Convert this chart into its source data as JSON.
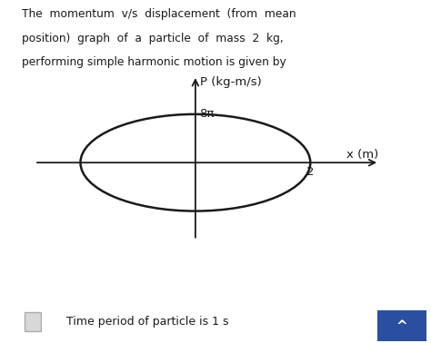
{
  "title_line1": "The  momentum  v/s  displacement  (from  mean",
  "title_line2": "position)  graph  of  a  particle  of  mass  2  kg,",
  "title_line3": "performing simple harmonic motion is given by",
  "ellipse_a": 2.0,
  "ellipse_b": 1.0,
  "x_label": "x (m)",
  "y_label": "P (kg-m/s)",
  "x_tick_val": "2",
  "y_tick_val": "8π",
  "footer_text": "Time period of particle is 1 s",
  "bg_color": "#ffffff",
  "text_color": "#1a1a1a",
  "ellipse_color": "#1a1a1a",
  "axis_color": "#1a1a1a",
  "axis_xlim": [
    -2.8,
    3.2
  ],
  "axis_ylim": [
    -1.6,
    1.8
  ],
  "btn_color": "#2a4fa0"
}
